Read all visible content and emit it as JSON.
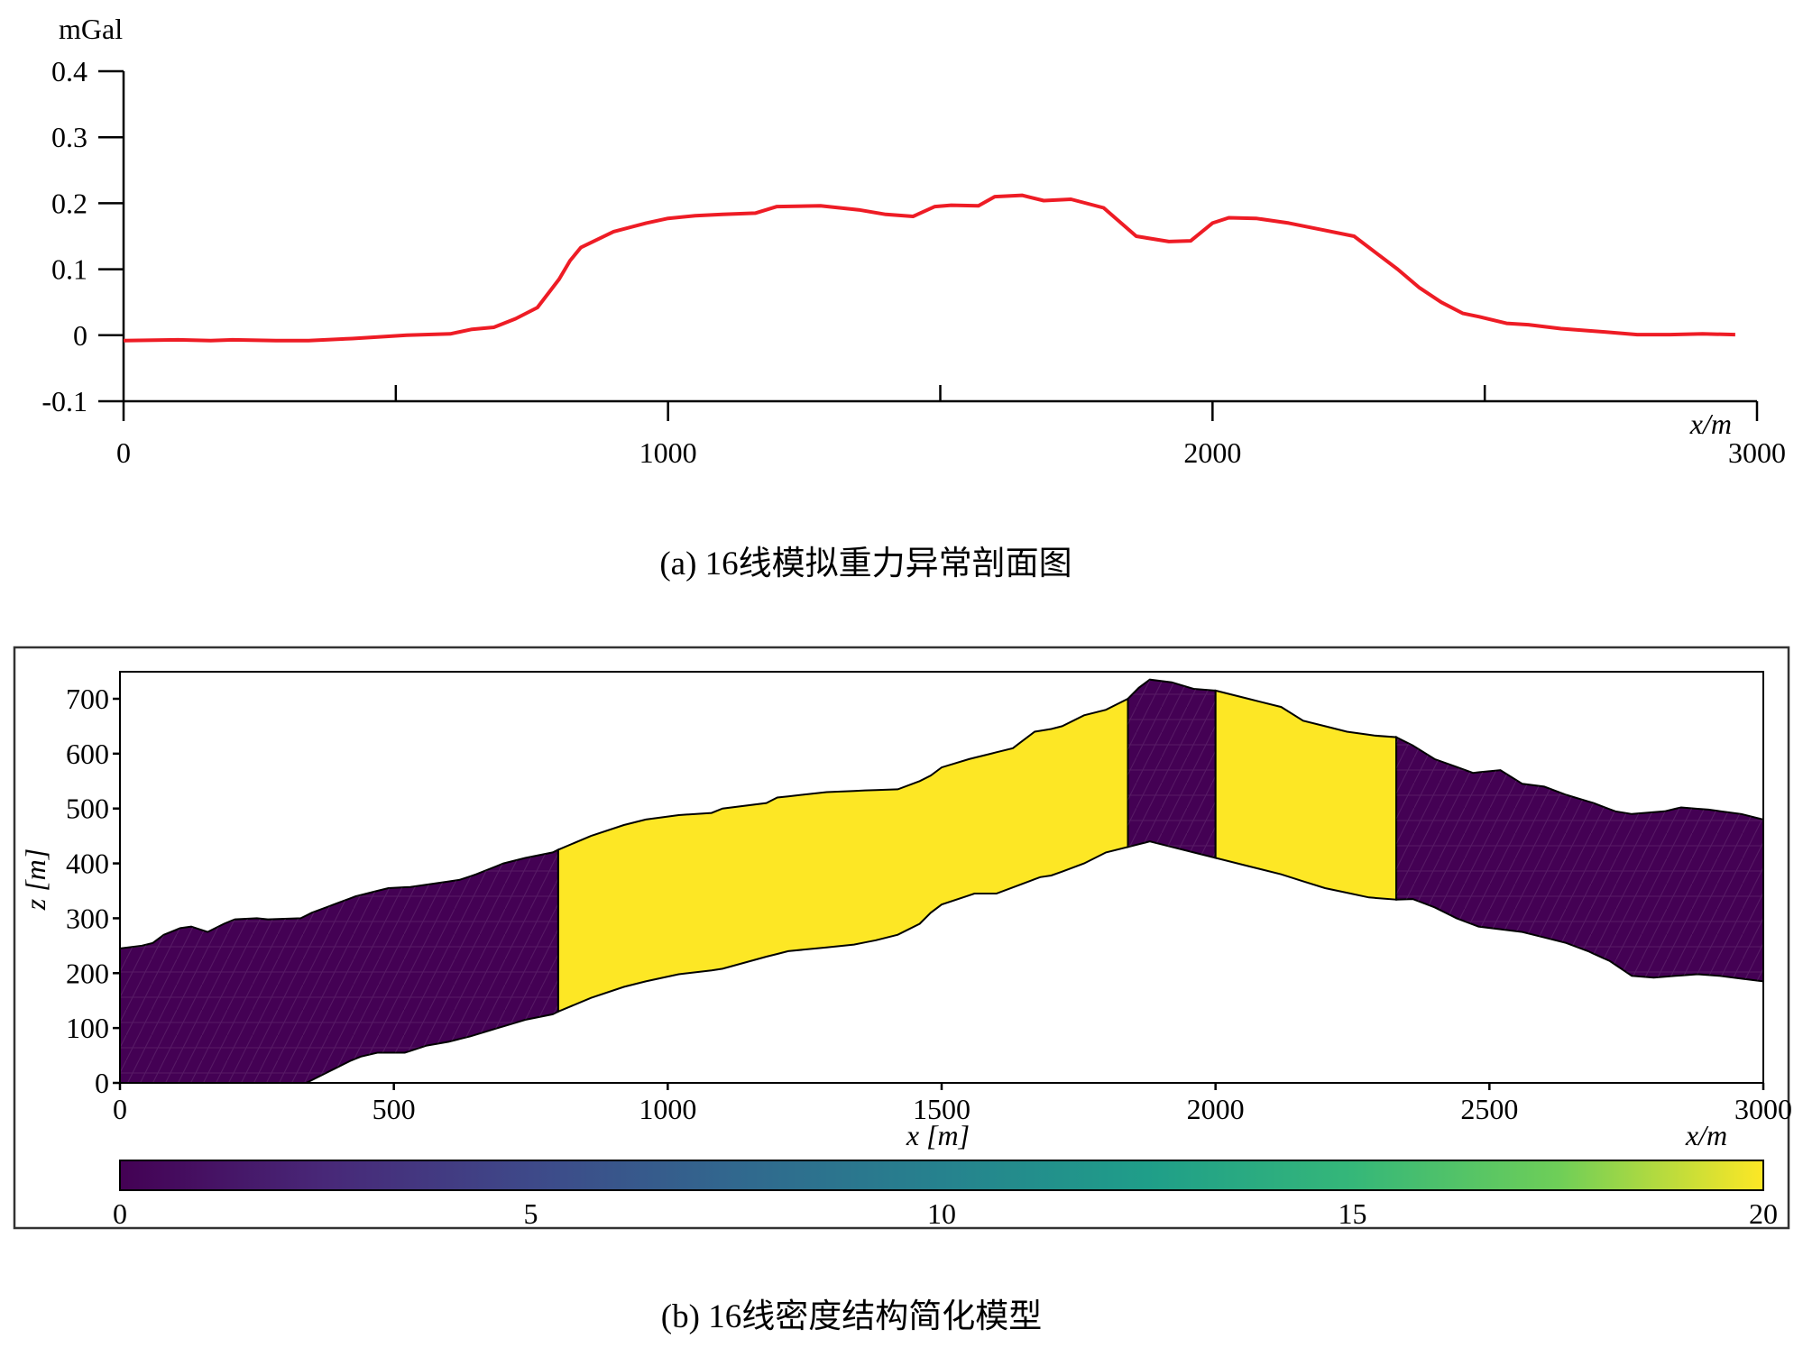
{
  "chart_data": [
    {
      "type": "line",
      "caption": "(a) 16线模拟重力异常剖面图",
      "yunit": "mGal",
      "xunit": "x/m",
      "xlim": [
        0,
        3000
      ],
      "ylim": [
        -0.1,
        0.4
      ],
      "x_tick_labels": [
        "0",
        "1000",
        "2000",
        "3000"
      ],
      "x_minor_ticks": [
        500,
        1500,
        2500
      ],
      "y_tick_labels": [
        "0.4",
        "0.3",
        "0.2",
        "0.1",
        "0",
        "-0.1"
      ],
      "y_ticks": [
        0.4,
        0.3,
        0.2,
        0.1,
        0,
        -0.1
      ],
      "line_color": "#ee1c25",
      "series": [
        {
          "x": [
            0,
            100,
            160,
            200,
            280,
            340,
            420,
            480,
            520,
            600,
            640,
            680,
            720,
            760,
            800,
            820,
            840,
            900,
            960,
            1000,
            1050,
            1100,
            1160,
            1200,
            1280,
            1350,
            1400,
            1450,
            1490,
            1520,
            1570,
            1600,
            1650,
            1690,
            1740,
            1800,
            1860,
            1920,
            1960,
            2000,
            2030,
            2080,
            2140,
            2200,
            2260,
            2300,
            2340,
            2380,
            2420,
            2460,
            2490,
            2540,
            2580,
            2640,
            2720,
            2780,
            2840,
            2900,
            2960
          ],
          "y": [
            -0.008,
            -0.007,
            -0.008,
            -0.007,
            -0.008,
            -0.008,
            -0.005,
            -0.002,
            0.0,
            0.002,
            0.009,
            0.012,
            0.025,
            0.042,
            0.085,
            0.113,
            0.133,
            0.157,
            0.17,
            0.177,
            0.181,
            0.183,
            0.185,
            0.195,
            0.196,
            0.19,
            0.183,
            0.18,
            0.195,
            0.197,
            0.196,
            0.21,
            0.212,
            0.204,
            0.206,
            0.193,
            0.15,
            0.142,
            0.143,
            0.17,
            0.178,
            0.177,
            0.17,
            0.16,
            0.15,
            0.125,
            0.1,
            0.072,
            0.05,
            0.033,
            0.028,
            0.018,
            0.016,
            0.01,
            0.005,
            0.001,
            0.001,
            0.002,
            0.001
          ]
        }
      ]
    },
    {
      "type": "heatmap",
      "caption": "(b) 16线密度结构简化模型",
      "xlabel": "x [m]",
      "ylabel": "z [m]",
      "xunit": "x/m",
      "xlim": [
        0,
        3000
      ],
      "ylim": [
        0,
        750
      ],
      "x_tick_labels": [
        "0",
        "500",
        "1000",
        "1500",
        "2000",
        "2500",
        "3000"
      ],
      "x_ticks": [
        0,
        500,
        1000,
        1500,
        2000,
        2500,
        3000
      ],
      "y_tick_labels": [
        "700",
        "600",
        "500",
        "400",
        "300",
        "200",
        "100",
        "0"
      ],
      "y_ticks": [
        700,
        600,
        500,
        400,
        300,
        200,
        100,
        0
      ],
      "colorbar": {
        "range": [
          0,
          20
        ],
        "tick_labels": [
          "0",
          "5",
          "10",
          "15",
          "20"
        ],
        "ticks": [
          0,
          5,
          10,
          15,
          20
        ],
        "colormap": "viridis"
      },
      "colors": {
        "low": "#440154",
        "high": "#fde725"
      },
      "top_boundary": {
        "x": [
          0,
          40,
          60,
          80,
          110,
          130,
          160,
          190,
          210,
          250,
          270,
          330,
          350,
          390,
          430,
          490,
          530,
          620,
          650,
          700,
          740,
          790,
          800,
          860,
          920,
          960,
          1020,
          1080,
          1100,
          1180,
          1200,
          1290,
          1360,
          1420,
          1460,
          1480,
          1500,
          1550,
          1590,
          1630,
          1670,
          1700,
          1720,
          1760,
          1800,
          1840,
          1860,
          1880,
          1920,
          1960,
          2000,
          2060,
          2120,
          2160,
          2240,
          2290,
          2330,
          2360,
          2400,
          2470,
          2520,
          2560,
          2600,
          2640,
          2690,
          2730,
          2760,
          2820,
          2850,
          2900,
          2960,
          3000
        ],
        "z": [
          245,
          250,
          255,
          270,
          282,
          285,
          275,
          290,
          298,
          300,
          298,
          300,
          310,
          325,
          340,
          355,
          357,
          370,
          380,
          400,
          410,
          420,
          425,
          450,
          470,
          480,
          488,
          492,
          500,
          510,
          520,
          530,
          533,
          535,
          550,
          560,
          575,
          590,
          600,
          610,
          640,
          645,
          650,
          670,
          680,
          700,
          720,
          735,
          730,
          718,
          715,
          700,
          685,
          660,
          640,
          633,
          630,
          615,
          590,
          565,
          570,
          545,
          540,
          525,
          510,
          495,
          490,
          495,
          502,
          498,
          490,
          480
        ]
      },
      "bottom_boundary": {
        "x": [
          0,
          340,
          380,
          420,
          440,
          470,
          520,
          560,
          600,
          640,
          690,
          740,
          790,
          800,
          860,
          920,
          960,
          1020,
          1080,
          1100,
          1180,
          1220,
          1300,
          1340,
          1380,
          1420,
          1460,
          1480,
          1500,
          1560,
          1600,
          1640,
          1680,
          1700,
          1720,
          1760,
          1800,
          1840,
          1880,
          1920,
          1960,
          2000,
          2060,
          2120,
          2200,
          2280,
          2330,
          2360,
          2400,
          2440,
          2480,
          2520,
          2560,
          2600,
          2640,
          2680,
          2720,
          2760,
          2800,
          2840,
          2880,
          2920,
          2960,
          3000
        ],
        "z": [
          0,
          0,
          20,
          40,
          48,
          55,
          55,
          68,
          75,
          85,
          100,
          115,
          125,
          130,
          155,
          175,
          185,
          198,
          205,
          208,
          230,
          240,
          248,
          252,
          260,
          270,
          290,
          310,
          325,
          345,
          345,
          360,
          375,
          378,
          385,
          400,
          420,
          430,
          440,
          430,
          420,
          410,
          395,
          380,
          355,
          338,
          334,
          335,
          320,
          300,
          285,
          280,
          275,
          265,
          255,
          240,
          222,
          195,
          192,
          195,
          198,
          195,
          190,
          185
        ]
      },
      "regions": [
        {
          "x_start": 0,
          "x_end": 800,
          "value": 0
        },
        {
          "x_start": 800,
          "x_end": 1840,
          "value": 20
        },
        {
          "x_start": 1840,
          "x_end": 2000,
          "value": 0
        },
        {
          "x_start": 2000,
          "x_end": 2330,
          "value": 20
        },
        {
          "x_start": 2330,
          "x_end": 3000,
          "value": 0
        }
      ]
    }
  ]
}
